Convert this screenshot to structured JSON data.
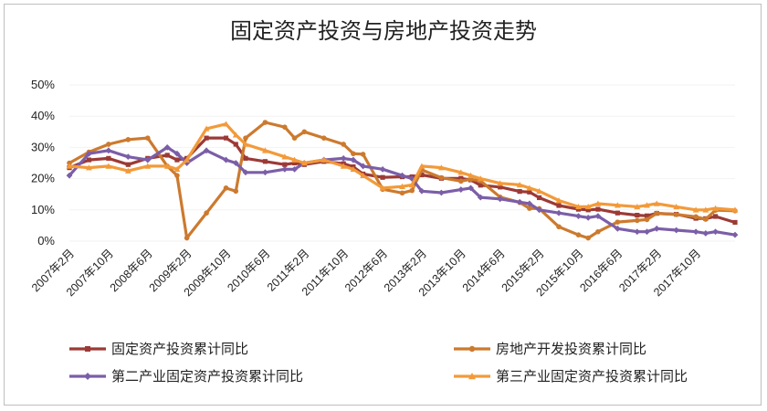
{
  "chart_data": {
    "type": "line",
    "title": "固定资产投资与房地产投资走势",
    "xlabel": "",
    "ylabel": "",
    "ylim": [
      0,
      50
    ],
    "yticks": [
      "0%",
      "10%",
      "20%",
      "30%",
      "40%",
      "50%"
    ],
    "xtick_labels": [
      "2007年2月",
      "2007年10月",
      "2008年6月",
      "2009年2月",
      "2009年10月",
      "2010年6月",
      "2011年2月",
      "2011年10月",
      "2012年6月",
      "2013年2月",
      "2013年10月",
      "2014年6月",
      "2015年2月",
      "2015年10月",
      "2016年6月",
      "2017年2月",
      "2017年10月"
    ],
    "x_start": "2007-02",
    "x_end": "2018-06",
    "series": [
      {
        "name": "固定资产投资累计同比",
        "color": "#9c3a36",
        "points": [
          [
            "2007-02",
            23.5
          ],
          [
            "2007-06",
            26
          ],
          [
            "2007-10",
            26.5
          ],
          [
            "2008-02",
            24.5
          ],
          [
            "2008-06",
            26.5
          ],
          [
            "2008-10",
            27.5
          ],
          [
            "2008-12",
            26
          ],
          [
            "2009-02",
            26.5
          ],
          [
            "2009-06",
            33
          ],
          [
            "2009-10",
            33
          ],
          [
            "2009-12",
            31
          ],
          [
            "2010-02",
            26.5
          ],
          [
            "2010-06",
            25.5
          ],
          [
            "2010-10",
            24.5
          ],
          [
            "2010-12",
            25
          ],
          [
            "2011-02",
            24.5
          ],
          [
            "2011-06",
            25.5
          ],
          [
            "2011-10",
            24.8
          ],
          [
            "2011-12",
            23.8
          ],
          [
            "2012-02",
            21.5
          ],
          [
            "2012-06",
            20.4
          ],
          [
            "2012-10",
            20.6
          ],
          [
            "2012-12",
            20.6
          ],
          [
            "2013-02",
            21.2
          ],
          [
            "2013-06",
            20.1
          ],
          [
            "2013-10",
            20.1
          ],
          [
            "2013-12",
            19.6
          ],
          [
            "2014-02",
            17.9
          ],
          [
            "2014-06",
            17.3
          ],
          [
            "2014-10",
            15.9
          ],
          [
            "2014-12",
            15.7
          ],
          [
            "2015-02",
            13.9
          ],
          [
            "2015-06",
            11.4
          ],
          [
            "2015-10",
            10.2
          ],
          [
            "2015-12",
            10
          ],
          [
            "2016-02",
            10.2
          ],
          [
            "2016-06",
            9
          ],
          [
            "2016-10",
            8.3
          ],
          [
            "2016-12",
            8.1
          ],
          [
            "2017-02",
            8.9
          ],
          [
            "2017-06",
            8.6
          ],
          [
            "2017-10",
            7.3
          ],
          [
            "2017-12",
            7.2
          ],
          [
            "2018-02",
            7.9
          ],
          [
            "2018-06",
            6
          ]
        ]
      },
      {
        "name": "房地产开发投资累计同比",
        "color": "#cc7a2e",
        "points": [
          [
            "2007-02",
            25
          ],
          [
            "2007-06",
            28.5
          ],
          [
            "2007-10",
            31
          ],
          [
            "2008-02",
            32.5
          ],
          [
            "2008-06",
            33
          ],
          [
            "2008-10",
            24
          ],
          [
            "2008-12",
            21
          ],
          [
            "2009-02",
            1
          ],
          [
            "2009-06",
            9
          ],
          [
            "2009-10",
            17
          ],
          [
            "2009-12",
            16
          ],
          [
            "2010-02",
            33
          ],
          [
            "2010-06",
            38
          ],
          [
            "2010-10",
            36.5
          ],
          [
            "2010-12",
            33
          ],
          [
            "2011-02",
            35
          ],
          [
            "2011-06",
            33
          ],
          [
            "2011-10",
            31
          ],
          [
            "2011-12",
            28
          ],
          [
            "2012-02",
            27.8
          ],
          [
            "2012-06",
            16.6
          ],
          [
            "2012-10",
            15.4
          ],
          [
            "2012-12",
            16.2
          ],
          [
            "2013-02",
            22.8
          ],
          [
            "2013-06",
            20.3
          ],
          [
            "2013-10",
            19.2
          ],
          [
            "2013-12",
            19.8
          ],
          [
            "2014-02",
            19.3
          ],
          [
            "2014-06",
            14.1
          ],
          [
            "2014-10",
            12.4
          ],
          [
            "2014-12",
            10.5
          ],
          [
            "2015-02",
            10.4
          ],
          [
            "2015-06",
            4.6
          ],
          [
            "2015-10",
            2
          ],
          [
            "2015-12",
            1
          ],
          [
            "2016-02",
            3
          ],
          [
            "2016-06",
            6.1
          ],
          [
            "2016-10",
            6.6
          ],
          [
            "2016-12",
            6.9
          ],
          [
            "2017-02",
            8.9
          ],
          [
            "2017-06",
            8.5
          ],
          [
            "2017-10",
            7.8
          ],
          [
            "2017-12",
            7
          ],
          [
            "2018-02",
            9.9
          ],
          [
            "2018-06",
            9.7
          ]
        ]
      },
      {
        "name": "第二产业固定资产投资累计同比",
        "color": "#7b5ea7",
        "points": [
          [
            "2007-02",
            21
          ],
          [
            "2007-06",
            28
          ],
          [
            "2007-10",
            29
          ],
          [
            "2008-02",
            27
          ],
          [
            "2008-06",
            26
          ],
          [
            "2008-10",
            30
          ],
          [
            "2008-12",
            28
          ],
          [
            "2009-02",
            25
          ],
          [
            "2009-06",
            29
          ],
          [
            "2009-10",
            26
          ],
          [
            "2009-12",
            25
          ],
          [
            "2010-02",
            22
          ],
          [
            "2010-06",
            22
          ],
          [
            "2010-10",
            23
          ],
          [
            "2010-12",
            23
          ],
          [
            "2011-02",
            25
          ],
          [
            "2011-06",
            26
          ],
          [
            "2011-10",
            26.5
          ],
          [
            "2011-12",
            26
          ],
          [
            "2012-02",
            24
          ],
          [
            "2012-06",
            23
          ],
          [
            "2012-10",
            21
          ],
          [
            "2012-12",
            20
          ],
          [
            "2013-02",
            16
          ],
          [
            "2013-06",
            15.5
          ],
          [
            "2013-10",
            16.5
          ],
          [
            "2013-12",
            17
          ],
          [
            "2014-02",
            14
          ],
          [
            "2014-06",
            13.5
          ],
          [
            "2014-10",
            12.5
          ],
          [
            "2014-12",
            12
          ],
          [
            "2015-02",
            10
          ],
          [
            "2015-06",
            9
          ],
          [
            "2015-10",
            8
          ],
          [
            "2015-12",
            7.5
          ],
          [
            "2016-02",
            8
          ],
          [
            "2016-06",
            4
          ],
          [
            "2016-10",
            3
          ],
          [
            "2016-12",
            3
          ],
          [
            "2017-02",
            4
          ],
          [
            "2017-06",
            3.5
          ],
          [
            "2017-10",
            3
          ],
          [
            "2017-12",
            2.5
          ],
          [
            "2018-02",
            3
          ],
          [
            "2018-06",
            2
          ]
        ]
      },
      {
        "name": "第三产业固定资产投资累计同比",
        "color": "#f29a3a",
        "points": [
          [
            "2007-02",
            24
          ],
          [
            "2007-06",
            23.5
          ],
          [
            "2007-10",
            24
          ],
          [
            "2008-02",
            22.5
          ],
          [
            "2008-06",
            24
          ],
          [
            "2008-10",
            24
          ],
          [
            "2008-12",
            23
          ],
          [
            "2009-02",
            26
          ],
          [
            "2009-06",
            36
          ],
          [
            "2009-10",
            37.5
          ],
          [
            "2009-12",
            34
          ],
          [
            "2010-02",
            31
          ],
          [
            "2010-06",
            29
          ],
          [
            "2010-10",
            27
          ],
          [
            "2010-12",
            26
          ],
          [
            "2011-02",
            25
          ],
          [
            "2011-06",
            26
          ],
          [
            "2011-10",
            24
          ],
          [
            "2011-12",
            23
          ],
          [
            "2012-02",
            21
          ],
          [
            "2012-06",
            17
          ],
          [
            "2012-10",
            17.5
          ],
          [
            "2012-12",
            18
          ],
          [
            "2013-02",
            24
          ],
          [
            "2013-06",
            23.5
          ],
          [
            "2013-10",
            22
          ],
          [
            "2013-12",
            21
          ],
          [
            "2014-02",
            20
          ],
          [
            "2014-06",
            18.5
          ],
          [
            "2014-10",
            18
          ],
          [
            "2014-12",
            17
          ],
          [
            "2015-02",
            16
          ],
          [
            "2015-06",
            13
          ],
          [
            "2015-10",
            11
          ],
          [
            "2015-12",
            11
          ],
          [
            "2016-02",
            12
          ],
          [
            "2016-06",
            11.5
          ],
          [
            "2016-10",
            11
          ],
          [
            "2016-12",
            11.5
          ],
          [
            "2017-02",
            12
          ],
          [
            "2017-06",
            11
          ],
          [
            "2017-10",
            10
          ],
          [
            "2017-12",
            10
          ],
          [
            "2018-02",
            10.5
          ],
          [
            "2018-06",
            10
          ]
        ]
      }
    ],
    "legend_position": "bottom"
  }
}
